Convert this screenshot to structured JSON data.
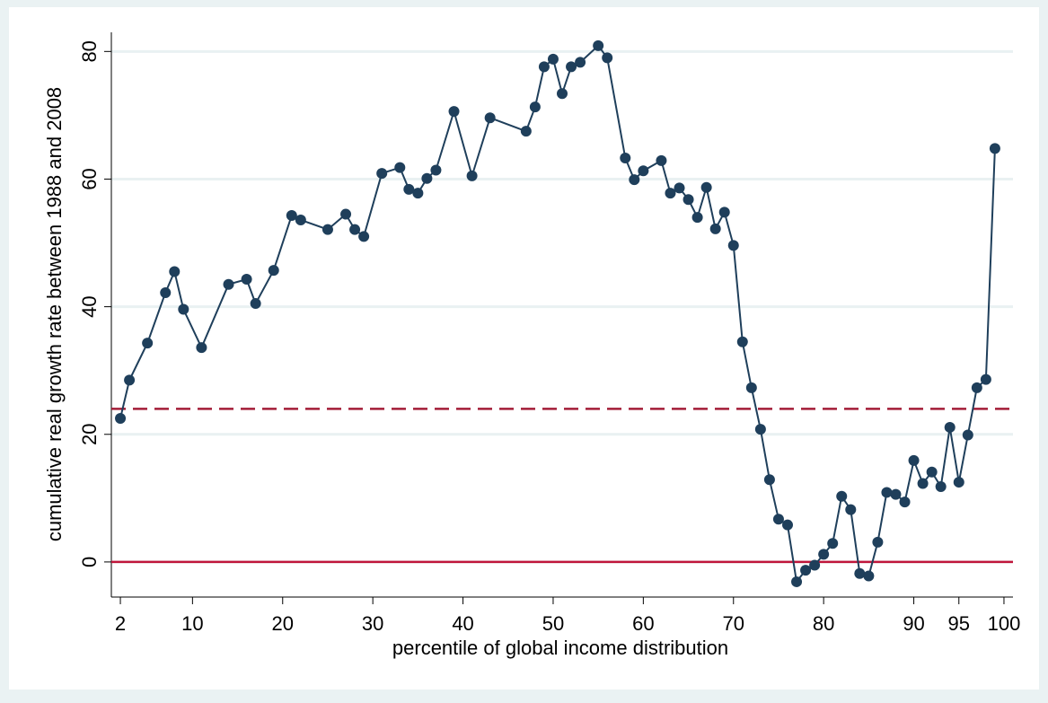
{
  "chart_data": {
    "type": "line",
    "title": "",
    "xlabel": "percentile of global income distribution",
    "ylabel": "cumulative real growth rate between 1988 and 2008",
    "xlim": [
      1,
      101
    ],
    "ylim": [
      -5.5,
      83
    ],
    "x_ticks": [
      2,
      10,
      20,
      30,
      40,
      50,
      60,
      70,
      80,
      90,
      95,
      100
    ],
    "x_tick_labels": [
      "2",
      "10",
      "20",
      "30",
      "40",
      "50",
      "60",
      "70",
      "80",
      "90",
      "95",
      "100"
    ],
    "y_ticks": [
      0,
      20,
      40,
      60,
      80
    ],
    "y_tick_labels": [
      "0",
      "20",
      "40",
      "60",
      "80"
    ],
    "grid": "horizontal",
    "reference_lines": [
      {
        "y": 24,
        "style": "dashed",
        "color": "#a31c37"
      },
      {
        "y": 0,
        "style": "solid",
        "color": "#c0163b"
      }
    ],
    "series": [
      {
        "color": "#1f3f5b",
        "marker": "circle",
        "points": [
          [
            2,
            22.5
          ],
          [
            3,
            28.5
          ],
          [
            5,
            34.3
          ],
          [
            7,
            42.2
          ],
          [
            8,
            45.5
          ],
          [
            9,
            39.6
          ],
          [
            11,
            33.6
          ],
          [
            14,
            43.5
          ],
          [
            16,
            44.3
          ],
          [
            17,
            40.5
          ],
          [
            19,
            45.7
          ],
          [
            21,
            54.3
          ],
          [
            22,
            53.6
          ],
          [
            25,
            52.1
          ],
          [
            27,
            54.5
          ],
          [
            28,
            52.1
          ],
          [
            29,
            51.0
          ],
          [
            31,
            60.9
          ],
          [
            33,
            61.8
          ],
          [
            34,
            58.4
          ],
          [
            35,
            57.8
          ],
          [
            36,
            60.1
          ],
          [
            37,
            61.4
          ],
          [
            39,
            70.6
          ],
          [
            41,
            60.5
          ],
          [
            43,
            69.6
          ],
          [
            47,
            67.5
          ],
          [
            48,
            71.3
          ],
          [
            49,
            77.6
          ],
          [
            50,
            78.8
          ],
          [
            51,
            73.4
          ],
          [
            52,
            77.6
          ],
          [
            53,
            78.3
          ],
          [
            55,
            80.9
          ],
          [
            56,
            79.0
          ],
          [
            58,
            63.3
          ],
          [
            59,
            59.9
          ],
          [
            60,
            61.3
          ],
          [
            62,
            62.9
          ],
          [
            63,
            57.8
          ],
          [
            64,
            58.6
          ],
          [
            65,
            56.8
          ],
          [
            66,
            54.0
          ],
          [
            67,
            58.7
          ],
          [
            68,
            52.2
          ],
          [
            69,
            54.8
          ],
          [
            70,
            49.6
          ],
          [
            71,
            34.5
          ],
          [
            72,
            27.3
          ],
          [
            73,
            20.8
          ],
          [
            74,
            12.9
          ],
          [
            75,
            6.7
          ],
          [
            76,
            5.8
          ],
          [
            77,
            -3.1
          ],
          [
            78,
            -1.3
          ],
          [
            79,
            -0.5
          ],
          [
            80,
            1.2
          ],
          [
            81,
            2.9
          ],
          [
            82,
            10.3
          ],
          [
            83,
            8.2
          ],
          [
            84,
            -1.8
          ],
          [
            85,
            -2.2
          ],
          [
            86,
            3.1
          ],
          [
            87,
            10.9
          ],
          [
            88,
            10.6
          ],
          [
            89,
            9.4
          ],
          [
            90,
            15.9
          ],
          [
            91,
            12.3
          ],
          [
            92,
            14.1
          ],
          [
            93,
            11.8
          ],
          [
            94,
            21.1
          ],
          [
            95,
            12.5
          ],
          [
            96,
            19.9
          ],
          [
            97,
            27.3
          ],
          [
            98,
            28.6
          ],
          [
            99,
            64.8
          ]
        ]
      }
    ]
  }
}
